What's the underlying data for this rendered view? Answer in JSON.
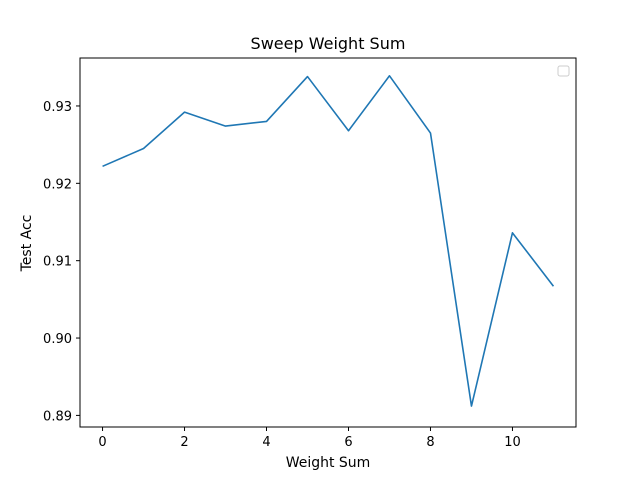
{
  "chart_data": {
    "type": "line",
    "title": "Sweep Weight Sum",
    "xlabel": "Weight Sum",
    "ylabel": "Test Acc",
    "xlim": [
      -0.55,
      11.55
    ],
    "ylim": [
      0.8885,
      0.9362
    ],
    "xticks": [
      0,
      2,
      4,
      6,
      8,
      10
    ],
    "yticks": [
      0.89,
      0.9,
      0.91,
      0.92,
      0.93
    ],
    "ytick_labels": [
      "0.89",
      "0.90",
      "0.91",
      "0.92",
      "0.93"
    ],
    "grid": false,
    "legend": {
      "placement": "top-right",
      "entries": []
    },
    "series": [
      {
        "color": "#1f77b4",
        "x": [
          0,
          1,
          2,
          3,
          4,
          5,
          6,
          7,
          8,
          9,
          10,
          11
        ],
        "values": [
          0.9222,
          0.9245,
          0.9292,
          0.9274,
          0.928,
          0.9338,
          0.9268,
          0.9339,
          0.9265,
          0.8912,
          0.9136,
          0.9067
        ]
      }
    ]
  }
}
